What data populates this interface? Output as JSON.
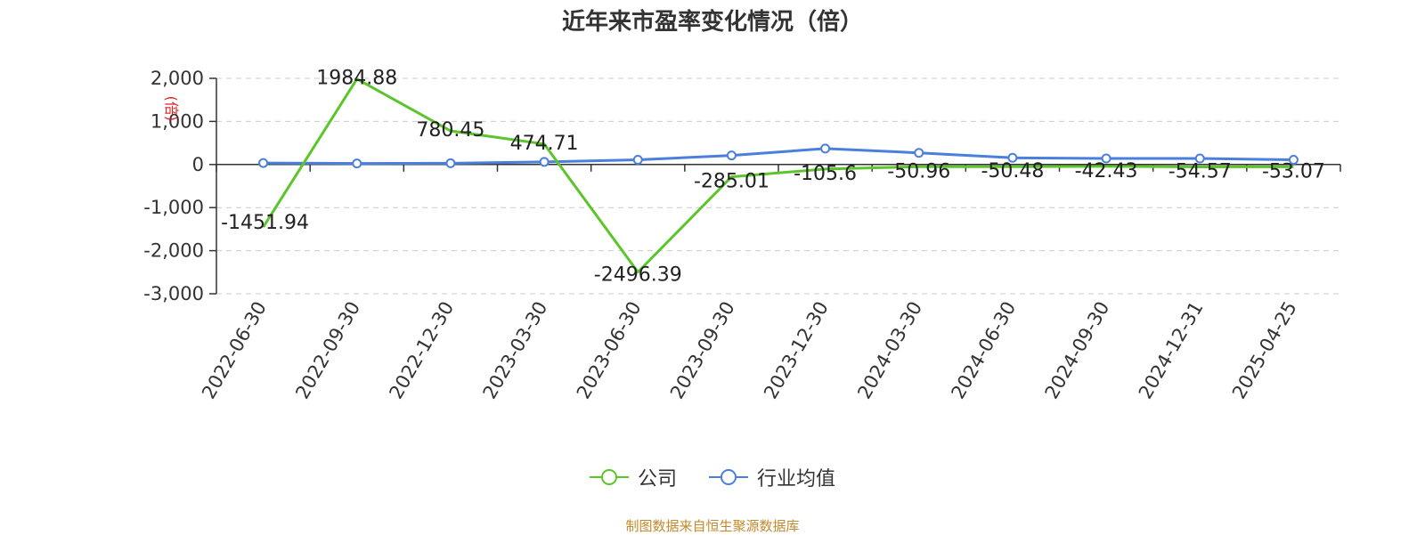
{
  "chart_data": {
    "type": "line",
    "title": "近年来市盈率变化情况（倍）",
    "ylabel": "(倍)",
    "xlabel": "",
    "categories": [
      "2022-06-30",
      "2022-09-30",
      "2022-12-30",
      "2023-03-30",
      "2023-06-30",
      "2023-09-30",
      "2023-12-30",
      "2024-03-30",
      "2024-06-30",
      "2024-09-30",
      "2024-12-31",
      "2025-04-25"
    ],
    "ylim": [
      -3000,
      2000
    ],
    "yticks": [
      2000,
      1000,
      0,
      -1000,
      -2000,
      -3000
    ],
    "ytick_labels": [
      "2,000",
      "1,000",
      "0",
      "-1,000",
      "-2,000",
      "-3,000"
    ],
    "grid": true,
    "legend_position": "bottom",
    "series": [
      {
        "name": "公司",
        "color": "#5cc52a",
        "values": [
          -1451.94,
          1984.88,
          780.45,
          474.71,
          -2496.39,
          -285.01,
          -105.6,
          -50.96,
          -50.48,
          -42.43,
          -54.57,
          -53.07
        ],
        "labels": [
          "-1451.94",
          "1984.88",
          "780.45",
          "474.71",
          "-2496.39",
          "-285.01",
          "-105.6",
          "-50.96",
          "-50.48",
          "-42.43",
          "-54.57",
          "-53.07"
        ]
      },
      {
        "name": "行业均值",
        "color": "#4a7fdc",
        "values": [
          35,
          25,
          30,
          60,
          110,
          210,
          370,
          270,
          155,
          140,
          140,
          110
        ]
      }
    ]
  },
  "source_note": "制图数据来自恒生聚源数据库"
}
